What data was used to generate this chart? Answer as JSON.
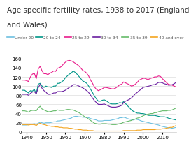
{
  "title_line1": "Age specific fertility rates, 1938 to 2017 (England",
  "title_line2": "and Wales)",
  "title_fontsize": 7.5,
  "legend_labels": [
    "Under 20",
    "20 to 24",
    "25 to 29",
    "30 to 34",
    "35 to 39",
    "40 and over"
  ],
  "legend_colors": [
    "#6ec0e0",
    "#009688",
    "#e91e8c",
    "#6a1fa0",
    "#66bb6a",
    "#f4a520"
  ],
  "xlim": [
    1938,
    2017
  ],
  "ylim": [
    0,
    160
  ],
  "yticks": [
    0,
    20,
    40,
    60,
    80,
    100,
    120,
    140,
    160
  ],
  "xticks": [
    1940,
    1950,
    1960,
    1970,
    1980,
    1990,
    2000,
    2010
  ],
  "background_color": "#ffffff",
  "years": [
    1938,
    1939,
    1940,
    1941,
    1942,
    1943,
    1944,
    1945,
    1946,
    1947,
    1948,
    1949,
    1950,
    1951,
    1952,
    1953,
    1954,
    1955,
    1956,
    1957,
    1958,
    1959,
    1960,
    1961,
    1962,
    1963,
    1964,
    1965,
    1966,
    1967,
    1968,
    1969,
    1970,
    1971,
    1972,
    1973,
    1974,
    1975,
    1976,
    1977,
    1978,
    1979,
    1980,
    1981,
    1982,
    1983,
    1984,
    1985,
    1986,
    1987,
    1988,
    1989,
    1990,
    1991,
    1992,
    1993,
    1994,
    1995,
    1996,
    1997,
    1998,
    1999,
    2000,
    2001,
    2002,
    2003,
    2004,
    2005,
    2006,
    2007,
    2008,
    2009,
    2010,
    2011,
    2012,
    2013,
    2014,
    2015,
    2016,
    2017
  ],
  "series": {
    "under20": [
      15,
      15,
      15,
      16,
      17,
      17,
      18,
      16,
      19,
      21,
      20,
      19,
      20,
      20,
      20,
      21,
      22,
      22,
      24,
      24,
      25,
      26,
      27,
      28,
      29,
      30,
      33,
      34,
      34,
      33,
      33,
      32,
      32,
      32,
      31,
      29,
      28,
      27,
      26,
      24,
      24,
      24,
      25,
      25,
      25,
      25,
      26,
      27,
      28,
      29,
      31,
      31,
      32,
      31,
      29,
      28,
      27,
      26,
      28,
      27,
      26,
      24,
      23,
      22,
      21,
      20,
      19,
      18,
      17,
      16,
      15,
      13,
      12,
      11,
      10,
      9,
      9,
      8,
      9,
      10
    ],
    "20to24": [
      91,
      91,
      88,
      85,
      90,
      89,
      93,
      83,
      104,
      106,
      100,
      97,
      100,
      98,
      98,
      97,
      100,
      100,
      106,
      106,
      109,
      112,
      118,
      122,
      126,
      128,
      133,
      130,
      126,
      121,
      116,
      111,
      109,
      106,
      100,
      93,
      86,
      78,
      72,
      67,
      67,
      69,
      70,
      68,
      65,
      62,
      61,
      61,
      61,
      62,
      64,
      63,
      66,
      62,
      57,
      53,
      48,
      45,
      43,
      41,
      41,
      40,
      40,
      39,
      37,
      36,
      36,
      36,
      36,
      35,
      34,
      33,
      33,
      33,
      32,
      30,
      29,
      28,
      27,
      26
    ],
    "25to29": [
      113,
      113,
      112,
      110,
      120,
      126,
      128,
      116,
      137,
      143,
      133,
      127,
      127,
      125,
      128,
      130,
      133,
      132,
      139,
      140,
      143,
      148,
      152,
      155,
      156,
      155,
      153,
      150,
      147,
      144,
      139,
      134,
      132,
      128,
      122,
      113,
      106,
      98,
      93,
      90,
      92,
      94,
      97,
      97,
      96,
      95,
      94,
      94,
      96,
      99,
      103,
      104,
      109,
      107,
      105,
      103,
      100,
      101,
      104,
      108,
      113,
      115,
      117,
      117,
      115,
      115,
      117,
      118,
      120,
      120,
      122,
      121,
      116,
      112,
      108,
      104,
      103,
      102,
      100,
      98
    ],
    "30to34": [
      82,
      82,
      82,
      80,
      84,
      87,
      88,
      83,
      96,
      104,
      95,
      90,
      87,
      82,
      82,
      83,
      85,
      85,
      88,
      88,
      88,
      89,
      91,
      94,
      97,
      99,
      103,
      103,
      102,
      100,
      98,
      96,
      93,
      90,
      86,
      80,
      74,
      68,
      64,
      60,
      60,
      60,
      61,
      59,
      57,
      55,
      54,
      54,
      54,
      55,
      56,
      58,
      64,
      67,
      69,
      71,
      74,
      78,
      83,
      86,
      90,
      93,
      97,
      98,
      99,
      100,
      101,
      103,
      103,
      105,
      108,
      108,
      107,
      105,
      104,
      102,
      102,
      103,
      105,
      108
    ],
    "35to39": [
      46,
      46,
      45,
      43,
      46,
      47,
      47,
      46,
      52,
      56,
      50,
      48,
      46,
      44,
      44,
      45,
      46,
      46,
      48,
      47,
      47,
      47,
      48,
      49,
      49,
      48,
      48,
      46,
      44,
      42,
      39,
      36,
      33,
      31,
      28,
      25,
      22,
      19,
      18,
      17,
      17,
      18,
      18,
      18,
      17,
      17,
      16,
      16,
      16,
      17,
      18,
      19,
      21,
      22,
      23,
      24,
      25,
      27,
      28,
      30,
      31,
      33,
      35,
      37,
      38,
      39,
      40,
      40,
      42,
      42,
      44,
      45,
      46,
      46,
      46,
      47,
      47,
      48,
      50,
      52
    ],
    "40andover": [
      16,
      16,
      16,
      15,
      16,
      16,
      16,
      14,
      17,
      19,
      17,
      16,
      15,
      13,
      13,
      12,
      12,
      11,
      11,
      10,
      10,
      9,
      9,
      9,
      8,
      8,
      7,
      6,
      6,
      5,
      5,
      4,
      4,
      4,
      3,
      3,
      3,
      2,
      2,
      2,
      2,
      2,
      2,
      2,
      2,
      2,
      2,
      2,
      2,
      2,
      2,
      2,
      3,
      3,
      3,
      3,
      3,
      3,
      3,
      4,
      4,
      4,
      5,
      5,
      5,
      5,
      5,
      5,
      5,
      6,
      6,
      6,
      7,
      7,
      8,
      9,
      10,
      10,
      12,
      14
    ]
  }
}
